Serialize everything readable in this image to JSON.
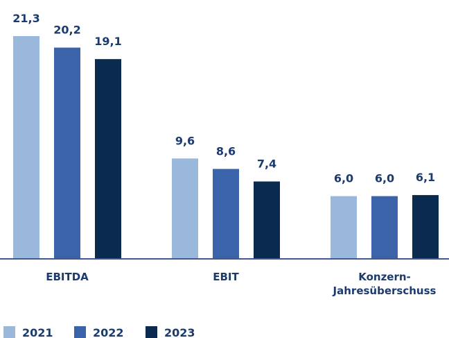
{
  "chart_data": {
    "type": "bar",
    "categories": [
      "EBITDA",
      "EBIT",
      "Konzern-Jahresüberschuss"
    ],
    "series": [
      {
        "name": "2021",
        "color": "#9ab8dc",
        "values": [
          21.3,
          9.6,
          6.0
        ],
        "value_labels": [
          "21,3",
          "9,6",
          "6,0"
        ]
      },
      {
        "name": "2022",
        "color": "#3a63a9",
        "values": [
          20.2,
          8.6,
          6.0
        ],
        "value_labels": [
          "20,2",
          "8,6",
          "6,0"
        ]
      },
      {
        "name": "2023",
        "color": "#0b2a4f",
        "values": [
          19.1,
          7.4,
          6.1
        ],
        "value_labels": [
          "19,1",
          "7,4",
          "6,1"
        ]
      }
    ]
  }
}
